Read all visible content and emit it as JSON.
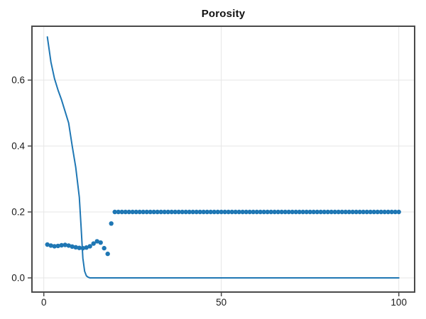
{
  "figure": {
    "title": "Porosity"
  },
  "chart_data": {
    "type": "line",
    "title": "Porosity",
    "xlabel": "",
    "ylabel": "",
    "xlim": [
      -3.3,
      104.6
    ],
    "ylim": [
      -0.043,
      0.763
    ],
    "x_ticks": [
      0,
      50,
      100
    ],
    "x_tick_labels": [
      "0",
      "50",
      "100"
    ],
    "y_ticks": [
      0.0,
      0.2,
      0.4,
      0.6
    ],
    "y_tick_labels": [
      "0.0",
      "0.2",
      "0.4",
      "0.6"
    ],
    "grid": true,
    "legend_position": "none",
    "colors": {
      "series_blue": "#1f77b4",
      "spine_gray": "#4a4a4a",
      "grid_gray": "#e6e6e6",
      "tick_label": "#1a1a1a"
    },
    "series": [
      {
        "name": "porosity-profile-line",
        "type": "line",
        "color": "#1f77b4",
        "line_width": 2,
        "x": [
          1,
          2,
          3,
          4,
          5,
          6,
          7,
          8,
          9,
          10,
          10.5,
          11,
          11.5,
          12,
          12.5,
          13,
          20,
          40,
          60,
          80,
          100
        ],
        "y": [
          0.731,
          0.655,
          0.605,
          0.57,
          0.54,
          0.505,
          0.47,
          0.4,
          0.335,
          0.245,
          0.155,
          0.06,
          0.02,
          0.006,
          0.002,
          0.0,
          0.0,
          0.0,
          0.0,
          0.0,
          0.0
        ]
      },
      {
        "name": "porosity-scatter",
        "type": "scatter",
        "color": "#1f77b4",
        "marker_size": 6.4,
        "x": [
          1,
          2,
          3,
          4,
          5,
          6,
          7,
          8,
          9,
          10,
          11,
          12,
          13,
          14,
          15,
          16,
          17,
          18,
          19,
          20,
          21,
          22,
          23,
          24,
          25,
          26,
          27,
          28,
          29,
          30,
          31,
          32,
          33,
          34,
          35,
          36,
          37,
          38,
          39,
          40,
          41,
          42,
          43,
          44,
          45,
          46,
          47,
          48,
          49,
          50,
          51,
          52,
          53,
          54,
          55,
          56,
          57,
          58,
          59,
          60,
          61,
          62,
          63,
          64,
          65,
          66,
          67,
          68,
          69,
          70,
          71,
          72,
          73,
          74,
          75,
          76,
          77,
          78,
          79,
          80,
          81,
          82,
          83,
          84,
          85,
          86,
          87,
          88,
          89,
          90,
          91,
          92,
          93,
          94,
          95,
          96,
          97,
          98,
          99,
          100
        ],
        "y": [
          0.101,
          0.098,
          0.096,
          0.097,
          0.099,
          0.1,
          0.098,
          0.095,
          0.093,
          0.091,
          0.09,
          0.092,
          0.096,
          0.104,
          0.111,
          0.107,
          0.09,
          0.073,
          0.165,
          0.2,
          0.2,
          0.2,
          0.2,
          0.2,
          0.2,
          0.2,
          0.2,
          0.2,
          0.2,
          0.2,
          0.2,
          0.2,
          0.2,
          0.2,
          0.2,
          0.2,
          0.2,
          0.2,
          0.2,
          0.2,
          0.2,
          0.2,
          0.2,
          0.2,
          0.2,
          0.2,
          0.2,
          0.2,
          0.2,
          0.2,
          0.2,
          0.2,
          0.2,
          0.2,
          0.2,
          0.2,
          0.2,
          0.2,
          0.2,
          0.2,
          0.2,
          0.2,
          0.2,
          0.2,
          0.2,
          0.2,
          0.2,
          0.2,
          0.2,
          0.2,
          0.2,
          0.2,
          0.2,
          0.2,
          0.2,
          0.2,
          0.2,
          0.2,
          0.2,
          0.2,
          0.2,
          0.2,
          0.2,
          0.2,
          0.2,
          0.2,
          0.2,
          0.2,
          0.2,
          0.2,
          0.2,
          0.2,
          0.2,
          0.2,
          0.2,
          0.2,
          0.2,
          0.2,
          0.2,
          0.2
        ]
      }
    ]
  }
}
